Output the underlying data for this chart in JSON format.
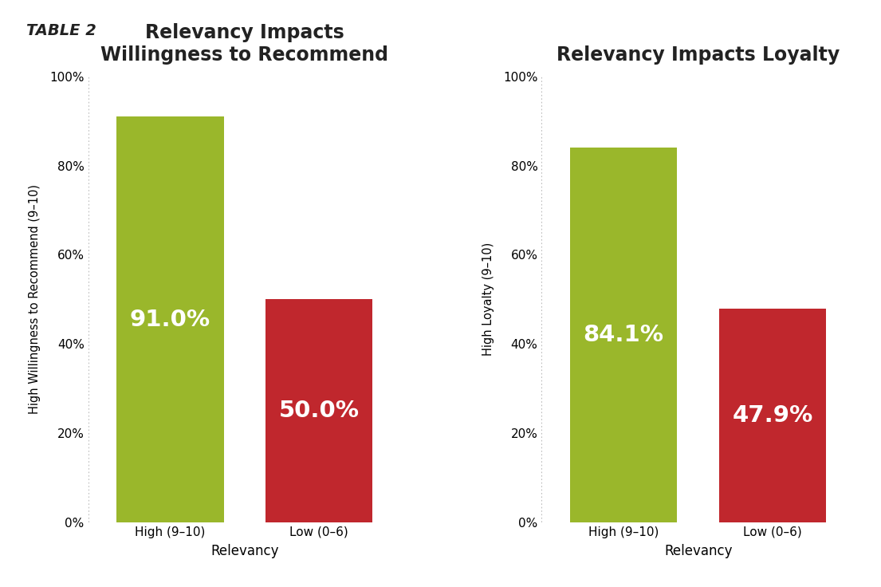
{
  "chart1": {
    "title": "Relevancy Impacts\nWillingness to Recommend",
    "categories": [
      "High (9–10)",
      "Low (0–6)"
    ],
    "values": [
      0.91,
      0.5
    ],
    "colors": [
      "#9ab72b",
      "#c0272d"
    ],
    "labels": [
      "91.0%",
      "50.0%"
    ],
    "ylabel": "High Willingness to Recommend (9–10)",
    "xlabel": "Relevancy"
  },
  "chart2": {
    "title": "Relevancy Impacts Loyalty",
    "categories": [
      "High (9–10)",
      "Low (0–6)"
    ],
    "values": [
      0.841,
      0.479
    ],
    "colors": [
      "#9ab72b",
      "#c0272d"
    ],
    "labels": [
      "84.1%",
      "47.9%"
    ],
    "ylabel": "High Loyalty (9–10)",
    "xlabel": "Relevancy"
  },
  "table_label": "TABLE 2",
  "background_color": "#ffffff",
  "ylim": [
    0,
    1.0
  ],
  "yticks": [
    0.0,
    0.2,
    0.4,
    0.6,
    0.8,
    1.0
  ],
  "ytick_labels": [
    "0%",
    "20%",
    "40%",
    "60%",
    "80%",
    "100%"
  ],
  "title_fontsize": 17,
  "ylabel_fontsize": 10.5,
  "xlabel_fontsize": 12,
  "bar_label_fontsize": 21,
  "tick_fontsize": 11,
  "table_fontsize": 14
}
